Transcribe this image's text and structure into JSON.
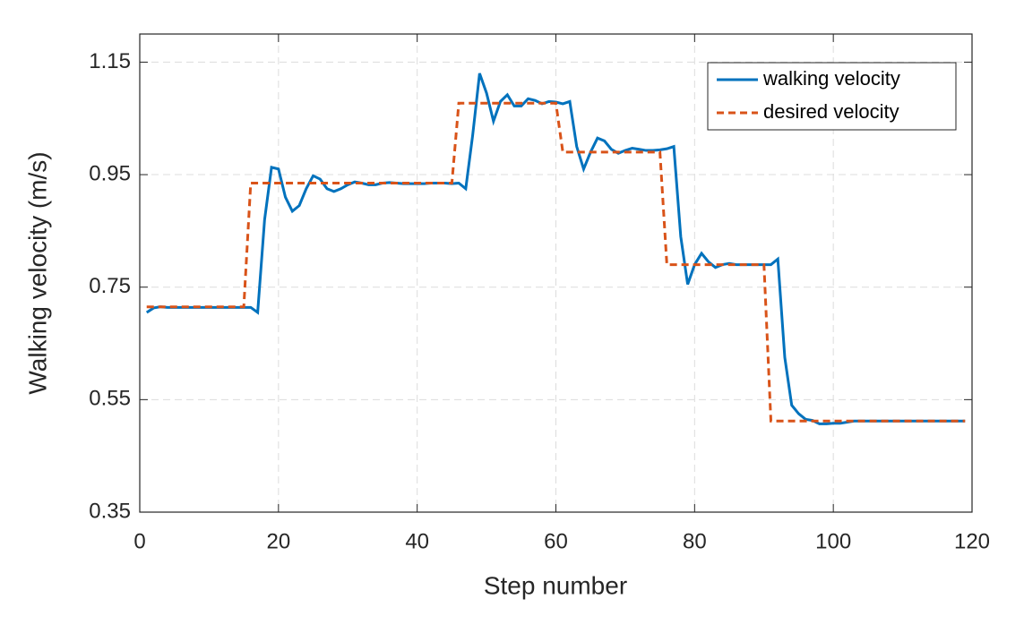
{
  "chart_data": {
    "type": "line",
    "xlabel": "Step number",
    "ylabel": "Walking velocity (m/s)",
    "x": [
      1,
      2,
      3,
      4,
      5,
      6,
      7,
      8,
      9,
      10,
      11,
      12,
      13,
      14,
      15,
      16,
      17,
      18,
      19,
      20,
      21,
      22,
      23,
      24,
      25,
      26,
      27,
      28,
      29,
      30,
      31,
      32,
      33,
      34,
      35,
      36,
      37,
      38,
      39,
      40,
      41,
      42,
      43,
      44,
      45,
      46,
      47,
      48,
      49,
      50,
      51,
      52,
      53,
      54,
      55,
      56,
      57,
      58,
      59,
      60,
      61,
      62,
      63,
      64,
      65,
      66,
      67,
      68,
      69,
      70,
      71,
      72,
      73,
      74,
      75,
      76,
      77,
      78,
      79,
      80,
      81,
      82,
      83,
      84,
      85,
      86,
      87,
      88,
      89,
      90,
      91,
      92,
      93,
      94,
      95,
      96,
      97,
      98,
      99,
      100,
      101,
      102,
      103,
      104,
      105,
      106,
      107,
      108,
      109,
      110,
      111,
      112,
      113,
      114,
      115,
      116,
      117,
      118,
      119
    ],
    "series": [
      {
        "name": "walking velocity",
        "color": "#0072bd",
        "dash": false,
        "values": [
          0.705,
          0.713,
          0.715,
          0.714,
          0.714,
          0.714,
          0.714,
          0.714,
          0.714,
          0.714,
          0.714,
          0.714,
          0.714,
          0.714,
          0.714,
          0.714,
          0.705,
          0.87,
          0.963,
          0.96,
          0.91,
          0.885,
          0.895,
          0.925,
          0.948,
          0.942,
          0.925,
          0.92,
          0.925,
          0.932,
          0.937,
          0.935,
          0.932,
          0.932,
          0.935,
          0.936,
          0.935,
          0.934,
          0.934,
          0.934,
          0.934,
          0.935,
          0.935,
          0.935,
          0.934,
          0.935,
          0.925,
          1.02,
          1.13,
          1.095,
          1.045,
          1.08,
          1.092,
          1.072,
          1.072,
          1.085,
          1.082,
          1.076,
          1.08,
          1.079,
          1.076,
          1.08,
          1.0,
          0.96,
          0.99,
          1.015,
          1.01,
          0.995,
          0.988,
          0.993,
          0.997,
          0.995,
          0.993,
          0.993,
          0.994,
          0.996,
          1.0,
          0.84,
          0.755,
          0.79,
          0.81,
          0.795,
          0.785,
          0.79,
          0.792,
          0.79,
          0.79,
          0.79,
          0.79,
          0.79,
          0.79,
          0.8,
          0.625,
          0.54,
          0.525,
          0.515,
          0.513,
          0.507,
          0.507,
          0.508,
          0.508,
          0.51,
          0.512,
          0.512,
          0.512,
          0.512,
          0.512,
          0.512,
          0.512,
          0.512,
          0.512,
          0.512,
          0.512,
          0.512,
          0.512,
          0.512,
          0.512,
          0.512,
          0.512
        ]
      },
      {
        "name": "desired velocity",
        "color": "#d95319",
        "dash": true,
        "values": [
          0.715,
          0.715,
          0.715,
          0.715,
          0.715,
          0.715,
          0.715,
          0.715,
          0.715,
          0.715,
          0.715,
          0.715,
          0.715,
          0.715,
          0.715,
          0.935,
          0.935,
          0.935,
          0.935,
          0.935,
          0.935,
          0.935,
          0.935,
          0.935,
          0.935,
          0.935,
          0.935,
          0.935,
          0.935,
          0.935,
          0.935,
          0.935,
          0.935,
          0.935,
          0.935,
          0.935,
          0.935,
          0.935,
          0.935,
          0.935,
          0.935,
          0.935,
          0.935,
          0.935,
          0.935,
          1.077,
          1.077,
          1.077,
          1.077,
          1.077,
          1.077,
          1.077,
          1.077,
          1.077,
          1.077,
          1.077,
          1.077,
          1.077,
          1.077,
          1.077,
          0.99,
          0.99,
          0.99,
          0.99,
          0.99,
          0.99,
          0.99,
          0.99,
          0.99,
          0.99,
          0.99,
          0.99,
          0.99,
          0.99,
          0.99,
          0.79,
          0.79,
          0.79,
          0.79,
          0.79,
          0.79,
          0.79,
          0.79,
          0.79,
          0.79,
          0.79,
          0.79,
          0.79,
          0.79,
          0.79,
          0.512,
          0.512,
          0.512,
          0.512,
          0.512,
          0.512,
          0.512,
          0.512,
          0.512,
          0.512,
          0.512,
          0.512,
          0.512,
          0.512,
          0.512,
          0.512,
          0.512,
          0.512,
          0.512,
          0.512,
          0.512,
          0.512,
          0.512,
          0.512,
          0.512,
          0.512,
          0.512,
          0.512,
          0.512
        ]
      }
    ],
    "xlim": [
      0,
      120
    ],
    "xticks": [
      0,
      20,
      40,
      60,
      80,
      100,
      120
    ],
    "ylim": [
      0.35,
      1.2
    ],
    "yticks": [
      0.35,
      0.55,
      0.75,
      0.95,
      1.15
    ],
    "grid": true,
    "legend": "top-right"
  }
}
